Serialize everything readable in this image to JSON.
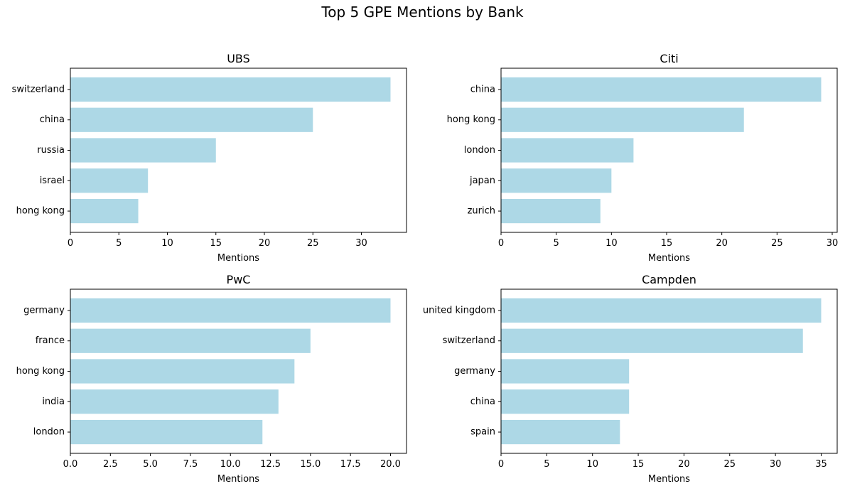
{
  "figure": {
    "title": "Top 5 GPE Mentions by Bank"
  },
  "style": {
    "bar_color": "#add8e6",
    "axis_color": "#000000",
    "background": "#ffffff"
  },
  "chart_data": [
    {
      "type": "bar",
      "orientation": "horizontal",
      "title": "UBS",
      "xlabel": "Mentions",
      "categories": [
        "switzerland",
        "china",
        "russia",
        "israel",
        "hong kong"
      ],
      "values": [
        33,
        25,
        15,
        8,
        7
      ],
      "xlim": [
        0,
        34.65
      ],
      "xticks": [
        0,
        5,
        10,
        15,
        20,
        25,
        30
      ],
      "xtick_labels": [
        "0",
        "5",
        "10",
        "15",
        "20",
        "25",
        "30"
      ],
      "grid": false
    },
    {
      "type": "bar",
      "orientation": "horizontal",
      "title": "Citi",
      "xlabel": "Mentions",
      "categories": [
        "china",
        "hong kong",
        "london",
        "japan",
        "zurich"
      ],
      "values": [
        29,
        22,
        12,
        10,
        9
      ],
      "xlim": [
        0,
        30.45
      ],
      "xticks": [
        0,
        5,
        10,
        15,
        20,
        25,
        30
      ],
      "xtick_labels": [
        "0",
        "5",
        "10",
        "15",
        "20",
        "25",
        "30"
      ],
      "grid": false
    },
    {
      "type": "bar",
      "orientation": "horizontal",
      "title": "PwC",
      "xlabel": "Mentions",
      "categories": [
        "germany",
        "france",
        "hong kong",
        "india",
        "london"
      ],
      "values": [
        20,
        15,
        14,
        13,
        12
      ],
      "xlim": [
        0,
        21
      ],
      "xticks": [
        0,
        2.5,
        5,
        7.5,
        10,
        12.5,
        15,
        17.5,
        20
      ],
      "xtick_labels": [
        "0.0",
        "2.5",
        "5.0",
        "7.5",
        "10.0",
        "12.5",
        "15.0",
        "17.5",
        "20.0"
      ],
      "grid": false
    },
    {
      "type": "bar",
      "orientation": "horizontal",
      "title": "Campden",
      "xlabel": "Mentions",
      "categories": [
        "united kingdom",
        "switzerland",
        "germany",
        "china",
        "spain"
      ],
      "values": [
        35,
        33,
        14,
        14,
        13
      ],
      "xlim": [
        0,
        36.75
      ],
      "xticks": [
        0,
        5,
        10,
        15,
        20,
        25,
        30,
        35
      ],
      "xtick_labels": [
        "0",
        "5",
        "10",
        "15",
        "20",
        "25",
        "30",
        "35"
      ],
      "grid": false
    }
  ]
}
